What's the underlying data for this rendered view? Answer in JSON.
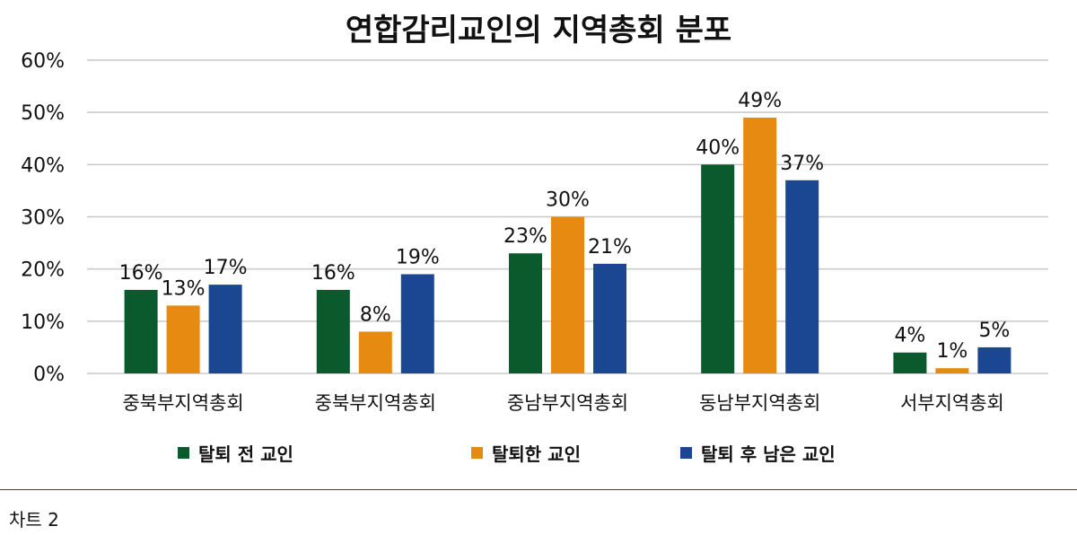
{
  "chart_data": {
    "type": "bar",
    "title": "연합감리교인의 지역총회 분포",
    "categories": [
      "중북부지역총회",
      "중북부지역총회",
      "중남부지역총회",
      "동남부지역총회",
      "서부지역총회"
    ],
    "series": [
      {
        "name": "탈퇴 전 교인",
        "values": [
          16,
          16,
          23,
          40,
          4
        ],
        "labels": [
          "16%",
          "16%",
          "23%",
          "40%",
          "4%"
        ],
        "color": "#0b5a2d"
      },
      {
        "name": "탈퇴한 교인",
        "values": [
          13,
          8,
          30,
          49,
          1
        ],
        "labels": [
          "13%",
          "8%",
          "30%",
          "49%",
          "1%"
        ],
        "color": "#e68a12"
      },
      {
        "name": "탈퇴 후 남은 교인",
        "values": [
          17,
          19,
          21,
          37,
          5
        ],
        "labels": [
          "17%",
          "19%",
          "21%",
          "37%",
          "5%"
        ],
        "color": "#1b4792"
      }
    ],
    "y_ticks": [
      "0%",
      "10%",
      "20%",
      "30%",
      "40%",
      "50%",
      "60%"
    ],
    "ylim": [
      0,
      60
    ],
    "grid": true,
    "legend_position": "bottom"
  },
  "caption": "차트 2"
}
